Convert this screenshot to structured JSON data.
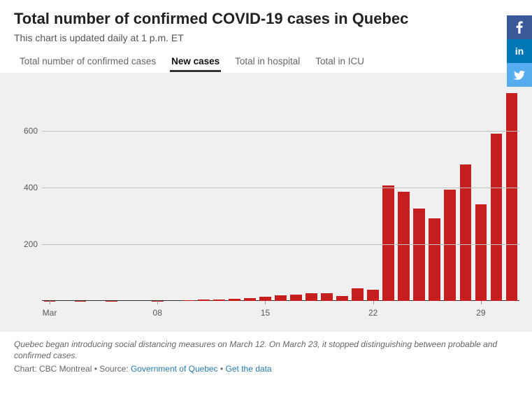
{
  "header": {
    "title": "Total number of confirmed COVID-19 cases in Quebec",
    "subtitle": "This chart is updated daily at 1 p.m. ET"
  },
  "tabs": [
    {
      "label": "Total number of confirmed cases",
      "active": false
    },
    {
      "label": "New cases",
      "active": true
    },
    {
      "label": "Total in hospital",
      "active": false
    },
    {
      "label": "Total in ICU",
      "active": false
    }
  ],
  "chart": {
    "type": "bar",
    "background_color": "#f0f0f0",
    "grid_color": "#bfbfbf",
    "baseline_color": "#333333",
    "bar_color": "#c71f1f",
    "axis_label_color": "#595959",
    "axis_fontsize": 12,
    "ylim": [
      0,
      760
    ],
    "yticks": [
      200,
      400,
      600
    ],
    "bar_gap_ratio": 0.24,
    "xtick_labels": [
      {
        "index": 0,
        "label": "Mar"
      },
      {
        "index": 7,
        "label": "08"
      },
      {
        "index": 14,
        "label": "15"
      },
      {
        "index": 21,
        "label": "22"
      },
      {
        "index": 28,
        "label": "29"
      }
    ],
    "values": [
      1,
      0,
      1,
      0,
      1,
      0,
      0,
      1,
      0,
      3,
      4,
      4,
      7,
      11,
      15,
      20,
      22,
      27,
      26,
      17,
      45,
      40,
      408,
      385,
      326,
      290,
      392,
      480,
      340,
      590,
      732
    ]
  },
  "footnote": "Quebec began introducing social distancing measures on March 12. On March 23, it stopped distinguishing between probable and confirmed cases.",
  "credit": {
    "prefix": "Chart: CBC Montreal • Source: ",
    "source_link_text": "Government of Quebec",
    "separator": " • ",
    "data_link_text": "Get the data"
  },
  "share": {
    "facebook_color": "#3b5998",
    "linkedin_color": "#0077b5",
    "twitter_color": "#55acee",
    "facebook_label": "f",
    "linkedin_label": "in",
    "twitter_label": "t"
  }
}
